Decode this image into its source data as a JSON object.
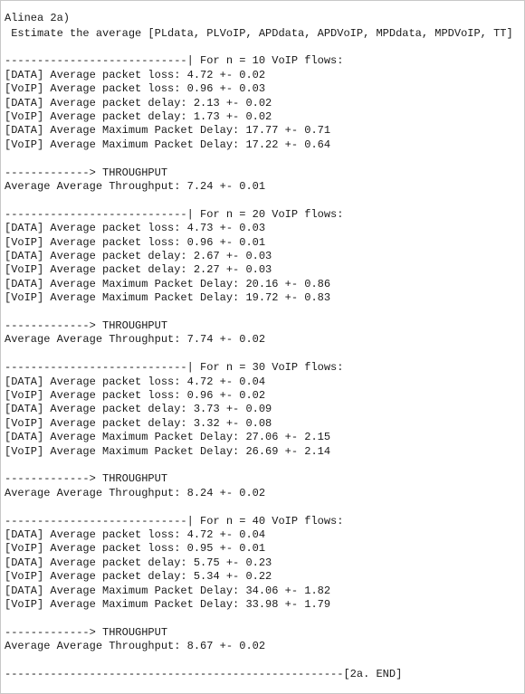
{
  "title": "Alinea 2a)",
  "subtitle": " Estimate the average [PLdata, PLVoIP, APDdata, APDVoIP, MPDdata, MPDVoIP, TT]",
  "sections": [
    {
      "header": "----------------------------| For n = 10 VoIP flows:",
      "lines": [
        "[DATA] Average packet loss: 4.72 +- 0.02",
        "[VoIP] Average packet loss: 0.96 +- 0.03",
        "[DATA] Average packet delay: 2.13 +- 0.02",
        "[VoIP] Average packet delay: 1.73 +- 0.02",
        "[DATA] Average Maximum Packet Delay: 17.77 +- 0.71",
        "[VoIP] Average Maximum Packet Delay: 17.22 +- 0.64"
      ],
      "throughput_header": "-------------> THROUGHPUT",
      "throughput": "Average Average Throughput: 7.24 +- 0.01"
    },
    {
      "header": "----------------------------| For n = 20 VoIP flows:",
      "lines": [
        "[DATA] Average packet loss: 4.73 +- 0.03",
        "[VoIP] Average packet loss: 0.96 +- 0.01",
        "[DATA] Average packet delay: 2.67 +- 0.03",
        "[VoIP] Average packet delay: 2.27 +- 0.03",
        "[DATA] Average Maximum Packet Delay: 20.16 +- 0.86",
        "[VoIP] Average Maximum Packet Delay: 19.72 +- 0.83"
      ],
      "throughput_header": "-------------> THROUGHPUT",
      "throughput": "Average Average Throughput: 7.74 +- 0.02"
    },
    {
      "header": "----------------------------| For n = 30 VoIP flows:",
      "lines": [
        "[DATA] Average packet loss: 4.72 +- 0.04",
        "[VoIP] Average packet loss: 0.96 +- 0.02",
        "[DATA] Average packet delay: 3.73 +- 0.09",
        "[VoIP] Average packet delay: 3.32 +- 0.08",
        "[DATA] Average Maximum Packet Delay: 27.06 +- 2.15",
        "[VoIP] Average Maximum Packet Delay: 26.69 +- 2.14"
      ],
      "throughput_header": "-------------> THROUGHPUT",
      "throughput": "Average Average Throughput: 8.24 +- 0.02"
    },
    {
      "header": "----------------------------| For n = 40 VoIP flows:",
      "lines": [
        "[DATA] Average packet loss: 4.72 +- 0.04",
        "[VoIP] Average packet loss: 0.95 +- 0.01",
        "[DATA] Average packet delay: 5.75 +- 0.23",
        "[VoIP] Average packet delay: 5.34 +- 0.22",
        "[DATA] Average Maximum Packet Delay: 34.06 +- 1.82",
        "[VoIP] Average Maximum Packet Delay: 33.98 +- 1.79"
      ],
      "throughput_header": "-------------> THROUGHPUT",
      "throughput": "Average Average Throughput: 8.67 +- 0.02"
    }
  ],
  "footer": "----------------------------------------------------[2a. END]"
}
